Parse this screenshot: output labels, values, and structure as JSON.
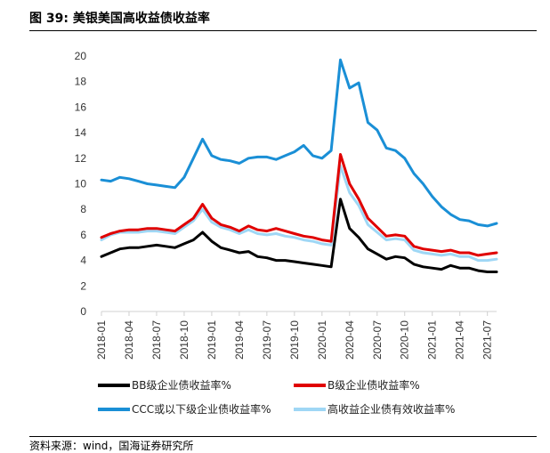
{
  "figure": {
    "title": "图 39:  美银美国高收益债收益率",
    "source": "资料来源：wind，国海证券研究所"
  },
  "chart_data": {
    "type": "line",
    "title": "美银美国高收益债收益率",
    "xlabel": "",
    "ylabel": "",
    "ylim": [
      0,
      20
    ],
    "yticks": [
      0,
      2,
      4,
      6,
      8,
      10,
      12,
      14,
      16,
      18,
      20
    ],
    "xlim": [
      "2018-01",
      "2021-08"
    ],
    "xticks": [
      "2018-01",
      "2018-04",
      "2018-07",
      "2018-10",
      "2019-01",
      "2019-04",
      "2019-07",
      "2019-10",
      "2020-01",
      "2020-04",
      "2020-07",
      "2020-10",
      "2021-01",
      "2021-04",
      "2021-07"
    ],
    "grid": false,
    "legend_position": "bottom",
    "series": [
      {
        "name": "BB级企业债收益率%",
        "color": "#000000",
        "points": [
          [
            "2018-01",
            4.3
          ],
          [
            "2018-02",
            4.6
          ],
          [
            "2018-03",
            4.9
          ],
          [
            "2018-04",
            5.0
          ],
          [
            "2018-05",
            5.0
          ],
          [
            "2018-06",
            5.1
          ],
          [
            "2018-07",
            5.2
          ],
          [
            "2018-08",
            5.1
          ],
          [
            "2018-09",
            5.0
          ],
          [
            "2018-10",
            5.3
          ],
          [
            "2018-11",
            5.6
          ],
          [
            "2018-12",
            6.2
          ],
          [
            "2019-01",
            5.5
          ],
          [
            "2019-02",
            5.0
          ],
          [
            "2019-03",
            4.8
          ],
          [
            "2019-04",
            4.6
          ],
          [
            "2019-05",
            4.7
          ],
          [
            "2019-06",
            4.3
          ],
          [
            "2019-07",
            4.2
          ],
          [
            "2019-08",
            4.0
          ],
          [
            "2019-09",
            4.0
          ],
          [
            "2019-10",
            3.9
          ],
          [
            "2019-11",
            3.8
          ],
          [
            "2019-12",
            3.7
          ],
          [
            "2020-01",
            3.6
          ],
          [
            "2020-02",
            3.5
          ],
          [
            "2020-03",
            8.8
          ],
          [
            "2020-04",
            6.5
          ],
          [
            "2020-05",
            5.8
          ],
          [
            "2020-06",
            4.9
          ],
          [
            "2020-07",
            4.5
          ],
          [
            "2020-08",
            4.1
          ],
          [
            "2020-09",
            4.3
          ],
          [
            "2020-10",
            4.2
          ],
          [
            "2020-11",
            3.7
          ],
          [
            "2020-12",
            3.5
          ],
          [
            "2021-01",
            3.4
          ],
          [
            "2021-02",
            3.3
          ],
          [
            "2021-03",
            3.6
          ],
          [
            "2021-04",
            3.4
          ],
          [
            "2021-05",
            3.4
          ],
          [
            "2021-06",
            3.2
          ],
          [
            "2021-07",
            3.1
          ],
          [
            "2021-08",
            3.1
          ]
        ]
      },
      {
        "name": "B级企业债收益率%",
        "color": "#e00000",
        "points": [
          [
            "2018-01",
            5.8
          ],
          [
            "2018-02",
            6.1
          ],
          [
            "2018-03",
            6.3
          ],
          [
            "2018-04",
            6.4
          ],
          [
            "2018-05",
            6.4
          ],
          [
            "2018-06",
            6.5
          ],
          [
            "2018-07",
            6.5
          ],
          [
            "2018-08",
            6.4
          ],
          [
            "2018-09",
            6.3
          ],
          [
            "2018-10",
            6.8
          ],
          [
            "2018-11",
            7.3
          ],
          [
            "2018-12",
            8.4
          ],
          [
            "2019-01",
            7.3
          ],
          [
            "2019-02",
            6.8
          ],
          [
            "2019-03",
            6.6
          ],
          [
            "2019-04",
            6.3
          ],
          [
            "2019-05",
            6.7
          ],
          [
            "2019-06",
            6.4
          ],
          [
            "2019-07",
            6.3
          ],
          [
            "2019-08",
            6.5
          ],
          [
            "2019-09",
            6.3
          ],
          [
            "2019-10",
            6.1
          ],
          [
            "2019-11",
            5.9
          ],
          [
            "2019-12",
            5.8
          ],
          [
            "2020-01",
            5.6
          ],
          [
            "2020-02",
            5.5
          ],
          [
            "2020-03",
            12.3
          ],
          [
            "2020-04",
            10.0
          ],
          [
            "2020-05",
            8.8
          ],
          [
            "2020-06",
            7.3
          ],
          [
            "2020-07",
            6.6
          ],
          [
            "2020-08",
            5.9
          ],
          [
            "2020-09",
            6.0
          ],
          [
            "2020-10",
            5.9
          ],
          [
            "2020-11",
            5.1
          ],
          [
            "2020-12",
            4.9
          ],
          [
            "2021-01",
            4.8
          ],
          [
            "2021-02",
            4.7
          ],
          [
            "2021-03",
            4.8
          ],
          [
            "2021-04",
            4.6
          ],
          [
            "2021-05",
            4.6
          ],
          [
            "2021-06",
            4.4
          ],
          [
            "2021-07",
            4.5
          ],
          [
            "2021-08",
            4.6
          ]
        ]
      },
      {
        "name": "CCC或以下级企业债收益率%",
        "color": "#1a8fd6",
        "points": [
          [
            "2018-01",
            10.3
          ],
          [
            "2018-02",
            10.2
          ],
          [
            "2018-03",
            10.5
          ],
          [
            "2018-04",
            10.4
          ],
          [
            "2018-05",
            10.2
          ],
          [
            "2018-06",
            10.0
          ],
          [
            "2018-07",
            9.9
          ],
          [
            "2018-08",
            9.8
          ],
          [
            "2018-09",
            9.7
          ],
          [
            "2018-10",
            10.5
          ],
          [
            "2018-11",
            12.0
          ],
          [
            "2018-12",
            13.5
          ],
          [
            "2019-01",
            12.2
          ],
          [
            "2019-02",
            11.9
          ],
          [
            "2019-03",
            11.8
          ],
          [
            "2019-04",
            11.6
          ],
          [
            "2019-05",
            12.0
          ],
          [
            "2019-06",
            12.1
          ],
          [
            "2019-07",
            12.1
          ],
          [
            "2019-08",
            11.9
          ],
          [
            "2019-09",
            12.2
          ],
          [
            "2019-10",
            12.5
          ],
          [
            "2019-11",
            13.0
          ],
          [
            "2019-12",
            12.2
          ],
          [
            "2020-01",
            12.0
          ],
          [
            "2020-02",
            12.6
          ],
          [
            "2020-03",
            19.7
          ],
          [
            "2020-04",
            17.5
          ],
          [
            "2020-05",
            17.9
          ],
          [
            "2020-06",
            14.8
          ],
          [
            "2020-07",
            14.2
          ],
          [
            "2020-08",
            12.8
          ],
          [
            "2020-09",
            12.6
          ],
          [
            "2020-10",
            12.0
          ],
          [
            "2020-11",
            10.8
          ],
          [
            "2020-12",
            10.0
          ],
          [
            "2021-01",
            9.0
          ],
          [
            "2021-02",
            8.2
          ],
          [
            "2021-03",
            7.6
          ],
          [
            "2021-04",
            7.2
          ],
          [
            "2021-05",
            7.1
          ],
          [
            "2021-06",
            6.8
          ],
          [
            "2021-07",
            6.7
          ],
          [
            "2021-08",
            6.9
          ]
        ]
      },
      {
        "name": "高收益企业债有效收益率%",
        "color": "#9fd7f5",
        "points": [
          [
            "2018-01",
            5.6
          ],
          [
            "2018-02",
            6.0
          ],
          [
            "2018-03",
            6.2
          ],
          [
            "2018-04",
            6.2
          ],
          [
            "2018-05",
            6.2
          ],
          [
            "2018-06",
            6.3
          ],
          [
            "2018-07",
            6.3
          ],
          [
            "2018-08",
            6.2
          ],
          [
            "2018-09",
            6.1
          ],
          [
            "2018-10",
            6.6
          ],
          [
            "2018-11",
            7.1
          ],
          [
            "2018-12",
            8.0
          ],
          [
            "2019-01",
            7.0
          ],
          [
            "2019-02",
            6.6
          ],
          [
            "2019-03",
            6.4
          ],
          [
            "2019-04",
            6.1
          ],
          [
            "2019-05",
            6.4
          ],
          [
            "2019-06",
            6.1
          ],
          [
            "2019-07",
            6.0
          ],
          [
            "2019-08",
            6.1
          ],
          [
            "2019-09",
            5.9
          ],
          [
            "2019-10",
            5.8
          ],
          [
            "2019-11",
            5.6
          ],
          [
            "2019-12",
            5.5
          ],
          [
            "2020-01",
            5.3
          ],
          [
            "2020-02",
            5.2
          ],
          [
            "2020-03",
            11.4
          ],
          [
            "2020-04",
            9.3
          ],
          [
            "2020-05",
            8.3
          ],
          [
            "2020-06",
            6.8
          ],
          [
            "2020-07",
            6.2
          ],
          [
            "2020-08",
            5.6
          ],
          [
            "2020-09",
            5.7
          ],
          [
            "2020-10",
            5.6
          ],
          [
            "2020-11",
            4.8
          ],
          [
            "2020-12",
            4.6
          ],
          [
            "2021-01",
            4.5
          ],
          [
            "2021-02",
            4.4
          ],
          [
            "2021-03",
            4.5
          ],
          [
            "2021-04",
            4.3
          ],
          [
            "2021-05",
            4.3
          ],
          [
            "2021-06",
            4.0
          ],
          [
            "2021-07",
            4.0
          ],
          [
            "2021-08",
            4.1
          ]
        ]
      }
    ]
  }
}
